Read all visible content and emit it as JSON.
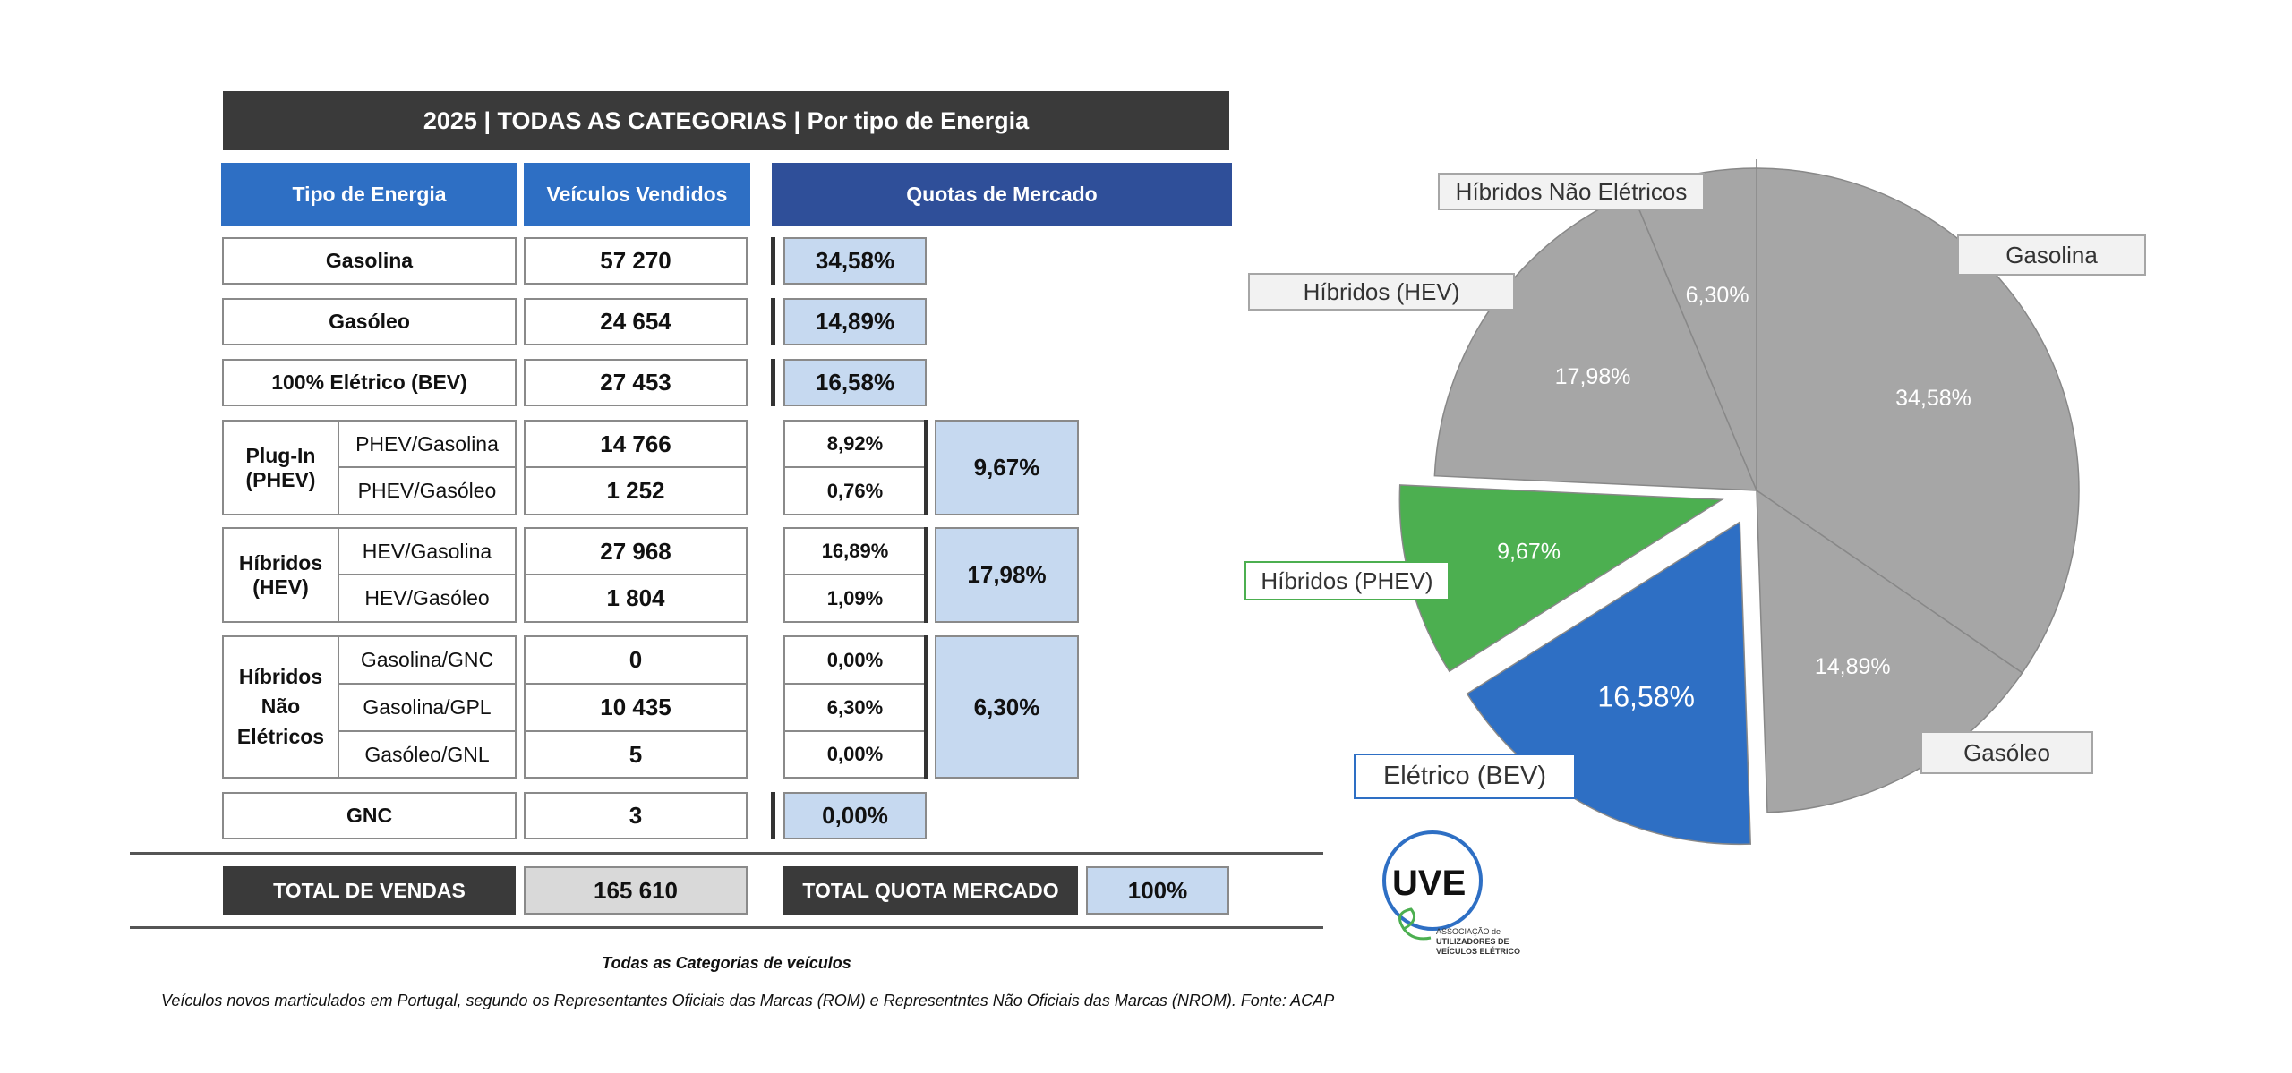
{
  "title": "2025 | TODAS AS CATEGORIAS | Por tipo de Energia",
  "headers": {
    "type": "Tipo de Energia",
    "sold": "Veículos Vendidos",
    "share": "Quotas de Mercado"
  },
  "rows": {
    "gasolina": {
      "label": "Gasolina",
      "sold": "57 270",
      "share": "34,58%"
    },
    "gasoleo": {
      "label": "Gasóleo",
      "sold": "24 654",
      "share": "14,89%"
    },
    "bev": {
      "label": "100% Elétrico (BEV)",
      "sold": "27 453",
      "share": "16,58%"
    },
    "gnc": {
      "label": "GNC",
      "sold": "3",
      "share": "0,00%"
    }
  },
  "groups": {
    "phev": {
      "label": "Plug-In (PHEV)",
      "total_share": "9,67%",
      "sub": [
        {
          "label": "PHEV/Gasolina",
          "sold": "14 766",
          "share": "8,92%"
        },
        {
          "label": "PHEV/Gasóleo",
          "sold": "1 252",
          "share": "0,76%"
        }
      ]
    },
    "hev": {
      "label": "Híbridos (HEV)",
      "total_share": "17,98%",
      "sub": [
        {
          "label": "HEV/Gasolina",
          "sold": "27 968",
          "share": "16,89%"
        },
        {
          "label": "HEV/Gasóleo",
          "sold": "1 804",
          "share": "1,09%"
        }
      ]
    },
    "hne": {
      "label": "Híbridos Não Elétricos",
      "total_share": "6,30%",
      "sub": [
        {
          "label": "Gasolina/GNC",
          "sold": "0",
          "share": "0,00%"
        },
        {
          "label": "Gasolina/GPL",
          "sold": "10 435",
          "share": "6,30%"
        },
        {
          "label": "Gasóleo/GNL",
          "sold": "5",
          "share": "0,00%"
        }
      ]
    }
  },
  "totals": {
    "sales_label": "TOTAL DE VENDAS",
    "sales_value": "165 610",
    "share_label": "TOTAL QUOTA MERCADO",
    "share_value": "100%"
  },
  "notes": {
    "caption": "Todas as Categorias de veículos",
    "source": "Veículos novos marticulados em Portugal, segundo os Representantes Oficiais das Marcas (ROM) e Representntes Não Oficiais das Marcas (NROM). Fonte: ACAP"
  },
  "logo": {
    "text": "UVE",
    "sub1": "ASSOCIAÇÃO de",
    "sub2": "UTILIZADORES DE",
    "sub3": "VEÍCULOS ELÉTRICOS"
  },
  "colors": {
    "grey": "#a6a6a6",
    "green": "#4caf50",
    "blue": "#2e6fc4"
  },
  "chart_data": {
    "type": "pie",
    "slices": [
      {
        "name": "Gasolina",
        "value": 34.58,
        "label": "34,58%",
        "color": "#a6a6a6",
        "exploded": false
      },
      {
        "name": "Gasóleo",
        "value": 14.89,
        "label": "14,89%",
        "color": "#a6a6a6",
        "exploded": false
      },
      {
        "name": "Elétrico (BEV)",
        "value": 16.58,
        "label": "16,58%",
        "color": "#2e6fc4",
        "exploded": true
      },
      {
        "name": "Híbridos (PHEV)",
        "value": 9.67,
        "label": "9,67%",
        "color": "#4caf50",
        "exploded": true
      },
      {
        "name": "Híbridos (HEV)",
        "value": 17.98,
        "label": "17,98%",
        "color": "#a6a6a6",
        "exploded": false
      },
      {
        "name": "Híbridos Não Elétricos",
        "value": 6.3,
        "label": "6,30%",
        "color": "#a6a6a6",
        "exploded": false
      }
    ]
  }
}
